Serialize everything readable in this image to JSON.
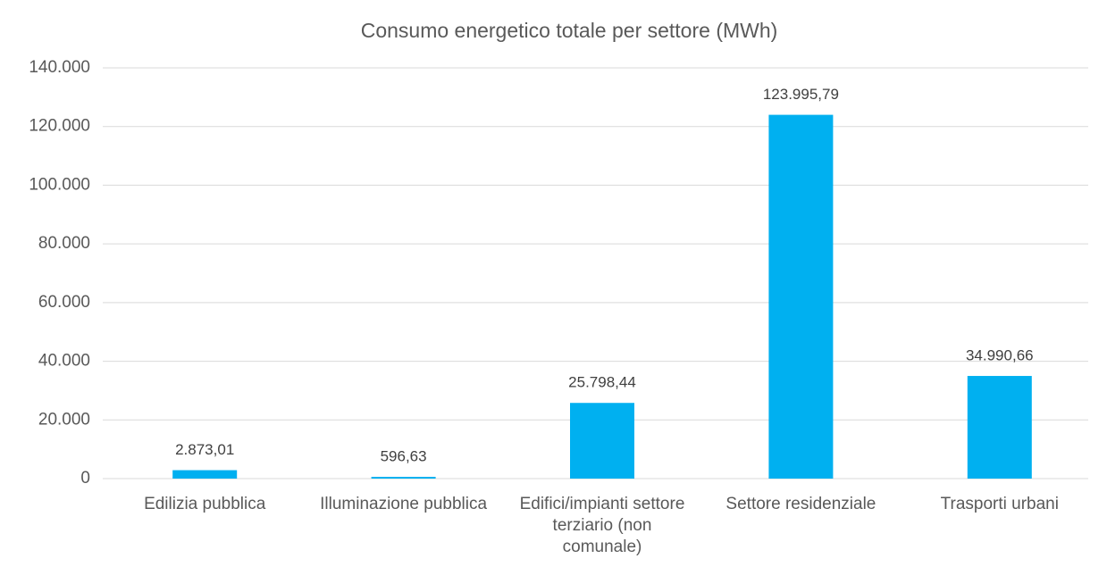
{
  "chart_data": {
    "type": "bar",
    "title": "Consumo energetico totale  per settore (MWh)",
    "categories": [
      "Edilizia pubblica",
      "Illuminazione pubblica",
      "Edifici/impianti settore terziario (non comunale)",
      "Settore residenziale",
      "Trasporti urbani"
    ],
    "values": [
      2873.01,
      596.63,
      25798.44,
      123995.79,
      34990.66
    ],
    "value_labels": [
      "2.873,01",
      "596,63",
      "25.798,44",
      "123.995,79",
      "34.990,66"
    ],
    "color": "#00b0f0",
    "ylim": [
      0,
      140000
    ],
    "yticks": [
      0,
      {
        "value": 20000,
        "label": "20.000"
      },
      {
        "value": 40000,
        "label": "40.000"
      },
      {
        "value": 60000,
        "label": "60.000"
      },
      {
        "value": 80000,
        "label": "80.000"
      },
      {
        "value": 100000,
        "label": "100.000"
      },
      {
        "value": 120000,
        "label": "120.000"
      },
      {
        "value": 140000,
        "label": "140.000"
      }
    ],
    "grid": true
  }
}
